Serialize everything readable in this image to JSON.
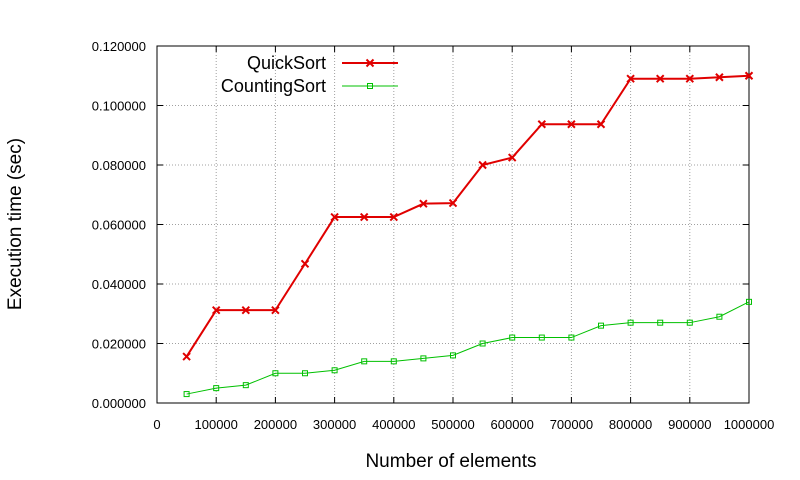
{
  "chart_data": {
    "type": "line",
    "title": "",
    "xlabel": "Number of elements",
    "ylabel": "Execution time (sec)",
    "xlim": [
      0,
      1000000
    ],
    "ylim": [
      0,
      0.12
    ],
    "x_ticks": [
      0,
      100000,
      200000,
      300000,
      400000,
      500000,
      600000,
      700000,
      800000,
      900000,
      1000000
    ],
    "x_tick_labels": [
      "0",
      "100000",
      "200000",
      "300000",
      "400000",
      "500000",
      "600000",
      "700000",
      "800000",
      "900000",
      "1000000"
    ],
    "y_ticks": [
      0,
      0.02,
      0.04,
      0.06,
      0.08,
      0.1,
      0.12
    ],
    "y_tick_labels": [
      "0.000000",
      "0.020000",
      "0.040000",
      "0.060000",
      "0.080000",
      "0.100000",
      "0.120000"
    ],
    "grid": true,
    "legend_position": "top-left",
    "x": [
      50000,
      100000,
      150000,
      200000,
      250000,
      300000,
      350000,
      400000,
      450000,
      500000,
      550000,
      600000,
      650000,
      700000,
      750000,
      800000,
      850000,
      900000,
      950000,
      1000000
    ],
    "series": [
      {
        "name": "QuickSort",
        "color": "#e00000",
        "marker": "x",
        "values": [
          0.0156,
          0.0312,
          0.0312,
          0.0312,
          0.0468,
          0.0625,
          0.0625,
          0.0625,
          0.067,
          0.0672,
          0.08,
          0.0825,
          0.0937,
          0.0937,
          0.0937,
          0.109,
          0.109,
          0.109,
          0.1095,
          0.11
        ]
      },
      {
        "name": "CountingSort",
        "color": "#00c000",
        "marker": "square",
        "values": [
          0.003,
          0.005,
          0.006,
          0.01,
          0.01,
          0.011,
          0.014,
          0.014,
          0.015,
          0.016,
          0.02,
          0.022,
          0.022,
          0.022,
          0.026,
          0.027,
          0.027,
          0.027,
          0.029,
          0.034
        ]
      }
    ]
  }
}
